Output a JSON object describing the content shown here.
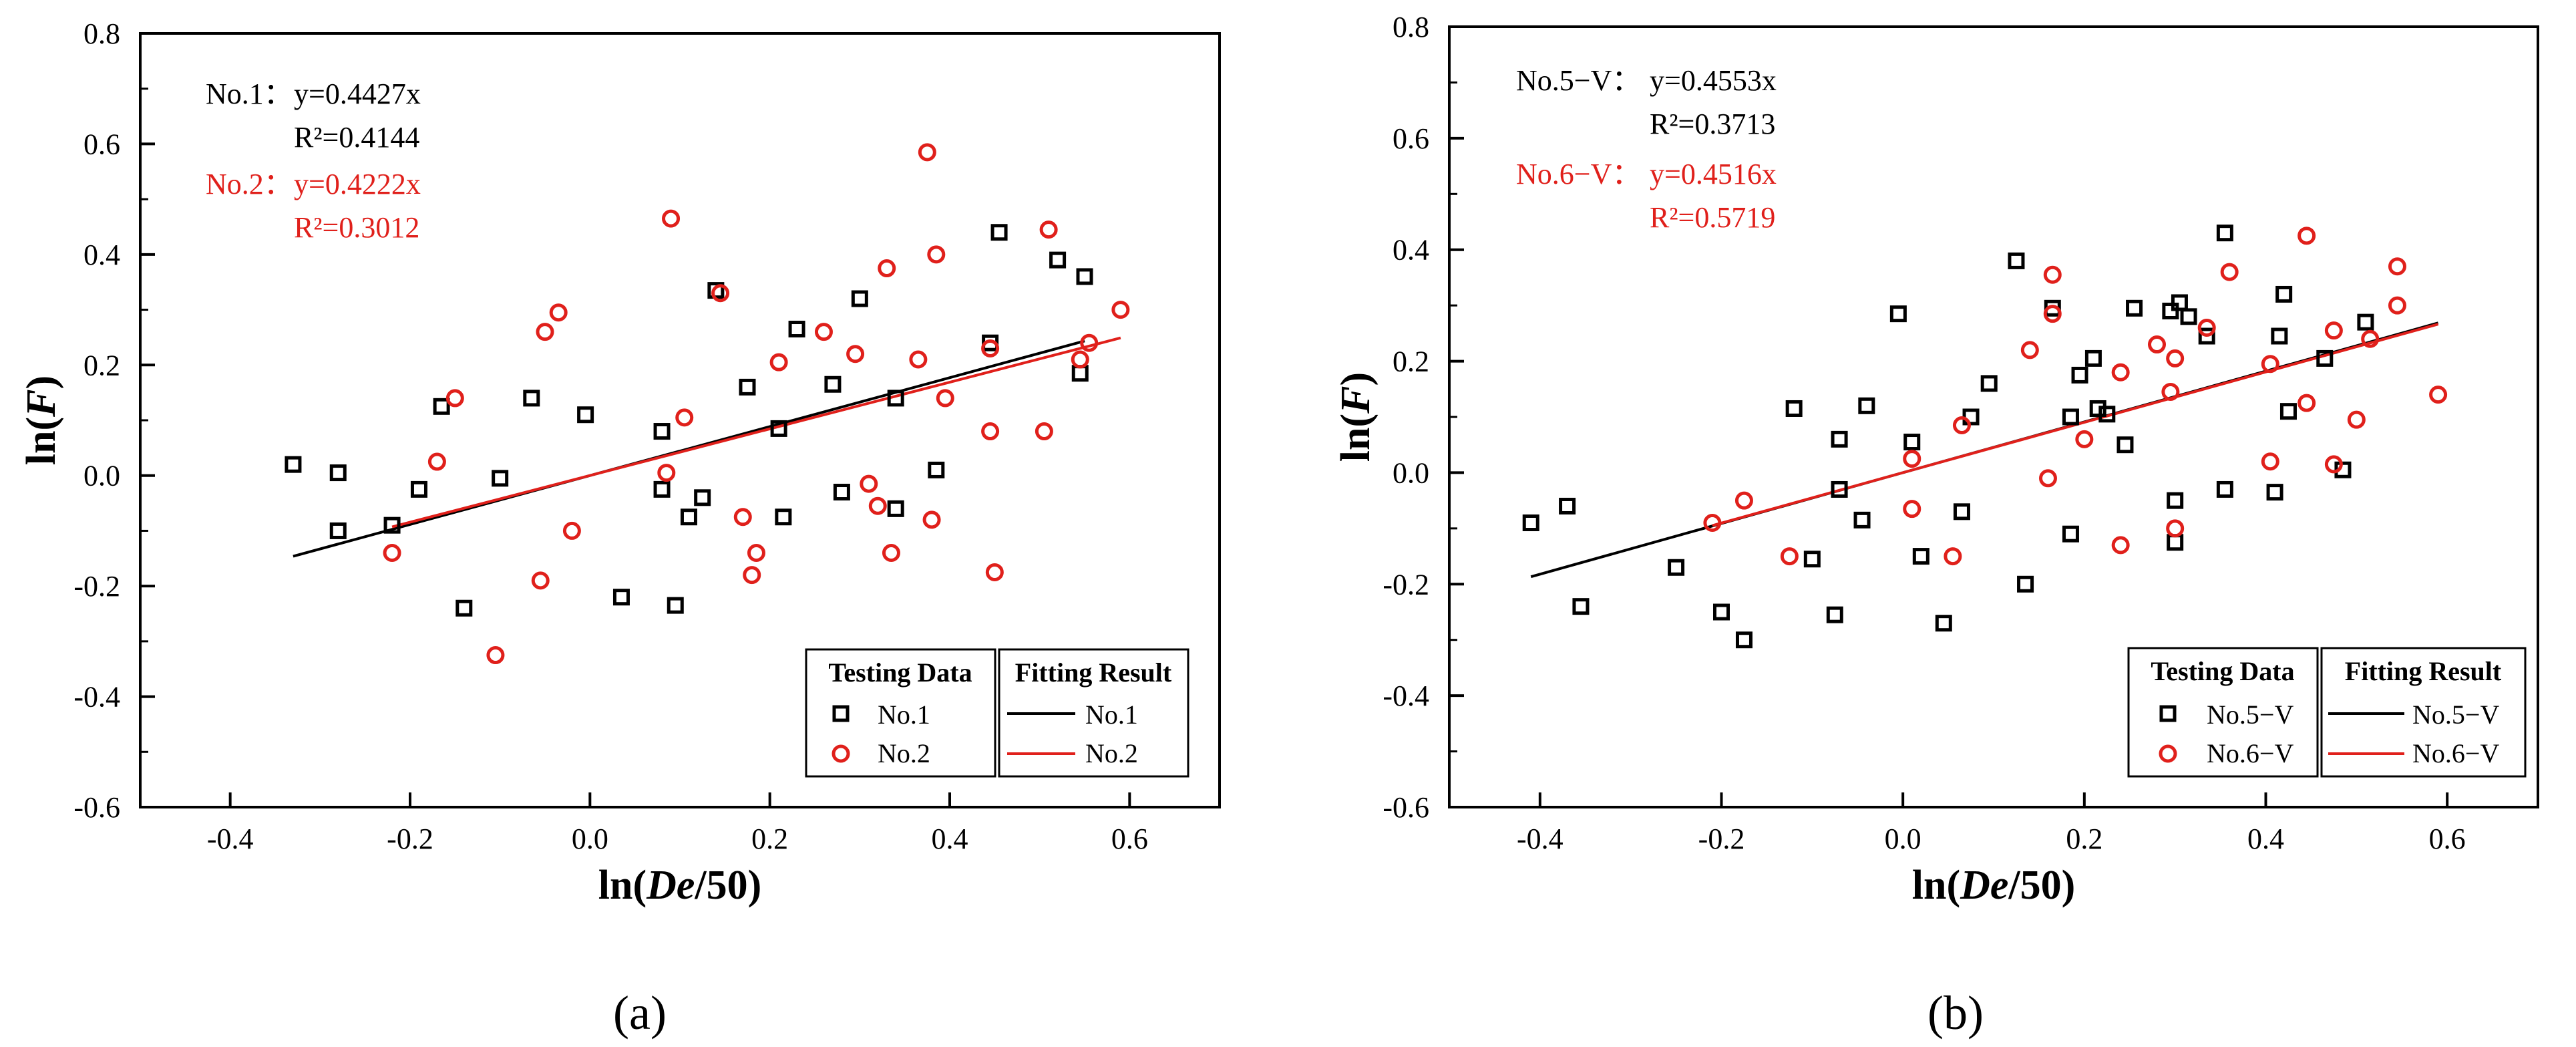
{
  "panels": [
    {
      "caption": "(a)",
      "x_label": "ln(De/50)",
      "y_label": "ln(F)",
      "equations": [
        {
          "label": "No.1：",
          "eq": "y=0.4427x",
          "r2": "R²=0.4144",
          "color": "#000000"
        },
        {
          "label": "No.2：",
          "eq": "y=0.4222x",
          "r2": "R²=0.3012",
          "color": "#e0201b"
        }
      ],
      "legend": {
        "head_data": "Testing Data",
        "head_fit": "Fitting Result",
        "series": [
          "No.1",
          "No.2"
        ]
      }
    },
    {
      "caption": "(b)",
      "x_label": "ln(De/50)",
      "y_label": "ln(F)",
      "equations": [
        {
          "label": "No.5−V：",
          "eq": "y=0.4553x",
          "r2": "R²=0.3713",
          "color": "#000000"
        },
        {
          "label": "No.6−V：",
          "eq": "y=0.4516x",
          "r2": "R²=0.5719",
          "color": "#e0201b"
        }
      ],
      "legend": {
        "head_data": "Testing Data",
        "head_fit": "Fitting Result",
        "series": [
          "No.5−V",
          "No.6−V"
        ]
      }
    }
  ],
  "chart_data": [
    {
      "type": "scatter",
      "title": "",
      "xlabel": "ln(De/50)",
      "ylabel": "ln(F)",
      "xlim": [
        -0.5,
        0.7
      ],
      "ylim": [
        -0.6,
        0.8
      ],
      "xticks": [
        -0.4,
        -0.2,
        0.0,
        0.2,
        0.4,
        0.6
      ],
      "yticks": [
        -0.6,
        -0.4,
        -0.2,
        0.0,
        0.2,
        0.4,
        0.6,
        0.8
      ],
      "xtick_labels": [
        "-0.4",
        "-0.2",
        "0.0",
        "0.2",
        "0.4",
        "0.6"
      ],
      "ytick_labels": [
        "-0.6",
        "-0.4",
        "-0.2",
        "0.0",
        "0.2",
        "0.4",
        "0.6",
        "0.8"
      ],
      "series": [
        {
          "name": "No.1",
          "marker": "square",
          "color": "#000000",
          "fit_slope": 0.4427,
          "fit_x": [
            -0.33,
            0.55
          ],
          "points": [
            [
              -0.33,
              0.02
            ],
            [
              -0.28,
              0.005
            ],
            [
              -0.28,
              -0.1
            ],
            [
              -0.22,
              -0.09
            ],
            [
              -0.19,
              -0.025
            ],
            [
              -0.165,
              0.125
            ],
            [
              -0.14,
              -0.24
            ],
            [
              -0.1,
              -0.005
            ],
            [
              -0.065,
              0.14
            ],
            [
              -0.005,
              0.11
            ],
            [
              0.035,
              -0.22
            ],
            [
              0.08,
              0.08
            ],
            [
              0.08,
              -0.025
            ],
            [
              0.095,
              -0.235
            ],
            [
              0.11,
              -0.075
            ],
            [
              0.125,
              -0.04
            ],
            [
              0.14,
              0.335
            ],
            [
              0.175,
              0.16
            ],
            [
              0.21,
              0.085
            ],
            [
              0.215,
              -0.075
            ],
            [
              0.23,
              0.265
            ],
            [
              0.27,
              0.165
            ],
            [
              0.28,
              -0.03
            ],
            [
              0.3,
              0.32
            ],
            [
              0.34,
              0.14
            ],
            [
              0.34,
              -0.06
            ],
            [
              0.385,
              0.01
            ],
            [
              0.445,
              0.24
            ],
            [
              0.455,
              0.44
            ],
            [
              0.52,
              0.39
            ],
            [
              0.545,
              0.185
            ],
            [
              0.55,
              0.36
            ]
          ]
        },
        {
          "name": "No.2",
          "marker": "circle",
          "color": "#e0201b",
          "fit_slope": 0.4222,
          "fit_x": [
            -0.22,
            0.59
          ],
          "points": [
            [
              -0.22,
              -0.14
            ],
            [
              -0.17,
              0.025
            ],
            [
              -0.15,
              0.14
            ],
            [
              -0.105,
              -0.325
            ],
            [
              -0.055,
              -0.19
            ],
            [
              -0.05,
              0.26
            ],
            [
              -0.035,
              0.295
            ],
            [
              -0.02,
              -0.1
            ],
            [
              0.085,
              0.005
            ],
            [
              0.09,
              0.465
            ],
            [
              0.105,
              0.105
            ],
            [
              0.145,
              0.33
            ],
            [
              0.17,
              -0.075
            ],
            [
              0.18,
              -0.18
            ],
            [
              0.185,
              -0.14
            ],
            [
              0.21,
              0.205
            ],
            [
              0.26,
              0.26
            ],
            [
              0.295,
              0.22
            ],
            [
              0.31,
              -0.015
            ],
            [
              0.32,
              -0.055
            ],
            [
              0.33,
              0.375
            ],
            [
              0.335,
              -0.14
            ],
            [
              0.365,
              0.21
            ],
            [
              0.375,
              0.585
            ],
            [
              0.38,
              -0.08
            ],
            [
              0.385,
              0.4
            ],
            [
              0.395,
              0.14
            ],
            [
              0.445,
              0.23
            ],
            [
              0.445,
              0.08
            ],
            [
              0.45,
              -0.175
            ],
            [
              0.505,
              0.08
            ],
            [
              0.51,
              0.445
            ],
            [
              0.545,
              0.21
            ],
            [
              0.555,
              0.24
            ],
            [
              0.59,
              0.3
            ]
          ]
        }
      ]
    },
    {
      "type": "scatter",
      "title": "",
      "xlabel": "ln(De/50)",
      "ylabel": "ln(F)",
      "xlim": [
        -0.5,
        0.7
      ],
      "ylim": [
        -0.6,
        0.8
      ],
      "xticks": [
        -0.4,
        -0.2,
        0.0,
        0.2,
        0.4,
        0.6
      ],
      "yticks": [
        -0.6,
        -0.4,
        -0.2,
        0.0,
        0.2,
        0.4,
        0.6,
        0.8
      ],
      "xtick_labels": [
        "-0.4",
        "-0.2",
        "0.0",
        "0.2",
        "0.4",
        "0.6"
      ],
      "ytick_labels": [
        "-0.6",
        "-0.4",
        "-0.2",
        "0.0",
        "0.2",
        "0.4",
        "0.6",
        "0.8"
      ],
      "series": [
        {
          "name": "No.5−V",
          "marker": "square",
          "color": "#000000",
          "fit_slope": 0.4553,
          "fit_x": [
            -0.41,
            0.59
          ],
          "points": [
            [
              -0.41,
              -0.09
            ],
            [
              -0.37,
              -0.06
            ],
            [
              -0.355,
              -0.24
            ],
            [
              -0.25,
              -0.17
            ],
            [
              -0.2,
              -0.25
            ],
            [
              -0.175,
              -0.3
            ],
            [
              -0.12,
              0.115
            ],
            [
              -0.1,
              -0.155
            ],
            [
              -0.075,
              -0.255
            ],
            [
              -0.07,
              0.06
            ],
            [
              -0.07,
              -0.03
            ],
            [
              -0.045,
              -0.085
            ],
            [
              -0.04,
              0.12
            ],
            [
              -0.005,
              0.285
            ],
            [
              0.01,
              0.055
            ],
            [
              0.02,
              -0.15
            ],
            [
              0.045,
              -0.27
            ],
            [
              0.065,
              -0.07
            ],
            [
              0.075,
              0.1
            ],
            [
              0.095,
              0.16
            ],
            [
              0.125,
              0.38
            ],
            [
              0.135,
              -0.2
            ],
            [
              0.165,
              0.295
            ],
            [
              0.185,
              0.1
            ],
            [
              0.185,
              -0.11
            ],
            [
              0.195,
              0.175
            ],
            [
              0.21,
              0.205
            ],
            [
              0.215,
              0.115
            ],
            [
              0.225,
              0.105
            ],
            [
              0.245,
              0.05
            ],
            [
              0.255,
              0.295
            ],
            [
              0.295,
              0.29
            ],
            [
              0.3,
              -0.05
            ],
            [
              0.3,
              -0.125
            ],
            [
              0.305,
              0.305
            ],
            [
              0.315,
              0.28
            ],
            [
              0.335,
              0.245
            ],
            [
              0.355,
              0.43
            ],
            [
              0.355,
              -0.03
            ],
            [
              0.41,
              -0.035
            ],
            [
              0.415,
              0.245
            ],
            [
              0.42,
              0.32
            ],
            [
              0.425,
              0.11
            ],
            [
              0.465,
              0.205
            ],
            [
              0.485,
              0.005
            ],
            [
              0.51,
              0.27
            ]
          ]
        },
        {
          "name": "No.6−V",
          "marker": "circle",
          "color": "#e0201b",
          "fit_slope": 0.4516,
          "fit_x": [
            -0.21,
            0.59
          ],
          "points": [
            [
              -0.21,
              -0.09
            ],
            [
              -0.175,
              -0.05
            ],
            [
              -0.125,
              -0.15
            ],
            [
              0.01,
              0.025
            ],
            [
              0.01,
              -0.065
            ],
            [
              0.055,
              -0.15
            ],
            [
              0.065,
              0.085
            ],
            [
              0.14,
              0.22
            ],
            [
              0.16,
              -0.01
            ],
            [
              0.165,
              0.355
            ],
            [
              0.165,
              0.285
            ],
            [
              0.2,
              0.06
            ],
            [
              0.24,
              0.18
            ],
            [
              0.24,
              -0.13
            ],
            [
              0.28,
              0.23
            ],
            [
              0.295,
              0.145
            ],
            [
              0.3,
              0.205
            ],
            [
              0.3,
              -0.1
            ],
            [
              0.335,
              0.26
            ],
            [
              0.36,
              0.36
            ],
            [
              0.405,
              0.195
            ],
            [
              0.405,
              0.02
            ],
            [
              0.445,
              0.425
            ],
            [
              0.445,
              0.125
            ],
            [
              0.475,
              0.255
            ],
            [
              0.475,
              0.015
            ],
            [
              0.5,
              0.095
            ],
            [
              0.515,
              0.24
            ],
            [
              0.545,
              0.37
            ],
            [
              0.545,
              0.3
            ],
            [
              0.59,
              0.14
            ]
          ]
        }
      ]
    }
  ]
}
